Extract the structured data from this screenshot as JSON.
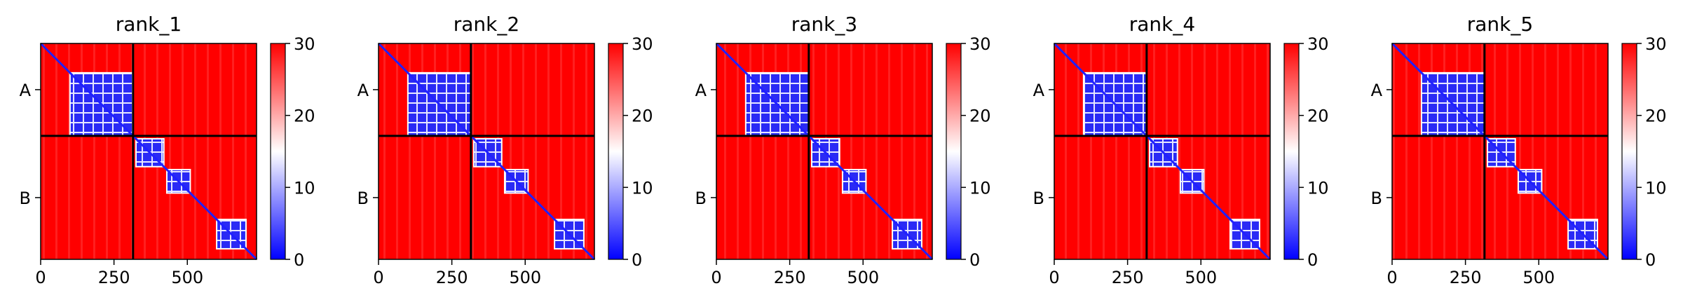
{
  "chart_data": [
    {
      "type": "heatmap",
      "title": "rank_1",
      "x_ticks": [
        0,
        250,
        500
      ],
      "y_tick_labels": [
        "A",
        "B"
      ],
      "chain_boundary": 315,
      "length": 736,
      "colorbar": {
        "min": 0,
        "max": 30,
        "ticks": [
          0,
          10,
          20,
          30
        ],
        "colors": [
          "#0000ff",
          "#ffffff",
          "#ff0000"
        ]
      },
      "low_error_blocks": [
        [
          100,
          315,
          100,
          315
        ],
        [
          325,
          420,
          325,
          420
        ],
        [
          430,
          510,
          430,
          510
        ],
        [
          600,
          700,
          600,
          700
        ]
      ]
    },
    {
      "type": "heatmap",
      "title": "rank_2",
      "x_ticks": [
        0,
        250,
        500
      ],
      "y_tick_labels": [
        "A",
        "B"
      ],
      "chain_boundary": 315,
      "length": 736,
      "colorbar": {
        "min": 0,
        "max": 30,
        "ticks": [
          0,
          10,
          20,
          30
        ],
        "colors": [
          "#0000ff",
          "#ffffff",
          "#ff0000"
        ]
      },
      "low_error_blocks": [
        [
          100,
          315,
          100,
          315
        ],
        [
          325,
          420,
          325,
          420
        ],
        [
          430,
          510,
          430,
          510
        ],
        [
          600,
          700,
          600,
          700
        ]
      ]
    },
    {
      "type": "heatmap",
      "title": "rank_3",
      "x_ticks": [
        0,
        250,
        500
      ],
      "y_tick_labels": [
        "A",
        "B"
      ],
      "chain_boundary": 315,
      "length": 736,
      "colorbar": {
        "min": 0,
        "max": 30,
        "ticks": [
          0,
          10,
          20,
          30
        ],
        "colors": [
          "#0000ff",
          "#ffffff",
          "#ff0000"
        ]
      },
      "low_error_blocks": [
        [
          100,
          315,
          100,
          315
        ],
        [
          325,
          420,
          325,
          420
        ],
        [
          430,
          510,
          430,
          510
        ],
        [
          600,
          700,
          600,
          700
        ]
      ]
    },
    {
      "type": "heatmap",
      "title": "rank_4",
      "x_ticks": [
        0,
        250,
        500
      ],
      "y_tick_labels": [
        "A",
        "B"
      ],
      "chain_boundary": 315,
      "length": 736,
      "colorbar": {
        "min": 0,
        "max": 30,
        "ticks": [
          0,
          10,
          20,
          30
        ],
        "colors": [
          "#0000ff",
          "#ffffff",
          "#ff0000"
        ]
      },
      "low_error_blocks": [
        [
          100,
          315,
          100,
          315
        ],
        [
          325,
          420,
          325,
          420
        ],
        [
          430,
          510,
          430,
          510
        ],
        [
          600,
          700,
          600,
          700
        ]
      ]
    },
    {
      "type": "heatmap",
      "title": "rank_5",
      "x_ticks": [
        0,
        250,
        500
      ],
      "y_tick_labels": [
        "A",
        "B"
      ],
      "chain_boundary": 315,
      "length": 736,
      "colorbar": {
        "min": 0,
        "max": 30,
        "ticks": [
          0,
          10,
          20,
          30
        ],
        "colors": [
          "#0000ff",
          "#ffffff",
          "#ff0000"
        ]
      },
      "low_error_blocks": [
        [
          100,
          315,
          100,
          315
        ],
        [
          325,
          420,
          325,
          420
        ],
        [
          430,
          510,
          430,
          510
        ],
        [
          600,
          700,
          600,
          700
        ]
      ]
    }
  ]
}
